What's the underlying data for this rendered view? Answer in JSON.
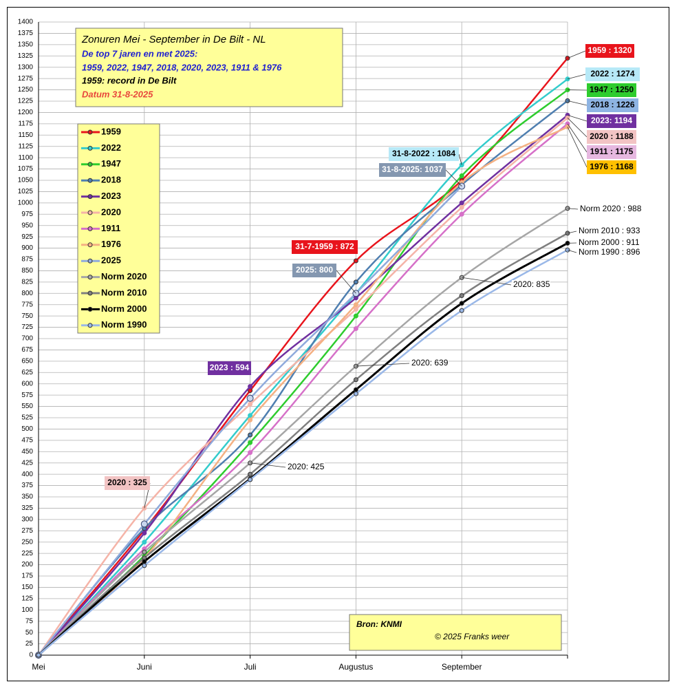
{
  "chart_data": {
    "type": "line",
    "title": "Zonuren Mei - September in De Bilt - NL",
    "subtitle": [
      "De top 7 jaren en met 2025:",
      "1959, 2022, 1947, 2018, 2020, 2023, 1911 & 1976",
      "1959: record in De Bilt",
      "Datum 31-8-2025"
    ],
    "source": [
      "Bron: KNMI",
      "© 2025 Franks weer"
    ],
    "categories": [
      "Mei",
      "Juni",
      "Juli",
      "Augustus",
      "September",
      null
    ],
    "ylim": [
      0,
      1400
    ],
    "yticks": [
      0,
      25,
      50,
      75,
      100,
      125,
      150,
      175,
      200,
      225,
      250,
      275,
      300,
      325,
      350,
      375,
      400,
      425,
      450,
      475,
      500,
      525,
      550,
      575,
      600,
      625,
      650,
      675,
      700,
      725,
      750,
      775,
      800,
      825,
      850,
      875,
      900,
      925,
      950,
      975,
      1000,
      1025,
      1050,
      1075,
      1100,
      1125,
      1150,
      1175,
      1200,
      1225,
      1250,
      1275,
      1300,
      1325,
      1350,
      1375,
      1400
    ],
    "grid": true,
    "series": [
      {
        "name": "1959",
        "color": "#e8141c",
        "values": [
          0,
          277,
          585,
          872,
          1050,
          1320
        ]
      },
      {
        "name": "2022",
        "color": "#33cccc",
        "values": [
          0,
          250,
          530,
          800,
          1084,
          1274
        ]
      },
      {
        "name": "1947",
        "color": "#2ecc2e",
        "values": [
          0,
          220,
          470,
          750,
          1060,
          1250
        ]
      },
      {
        "name": "2018",
        "color": "#4f7fb0",
        "values": [
          0,
          280,
          487,
          825,
          1040,
          1226
        ]
      },
      {
        "name": "2023",
        "color": "#7030a0",
        "values": [
          0,
          270,
          594,
          790,
          1000,
          1194
        ]
      },
      {
        "name": "2020",
        "color": "#f5b4a8",
        "values": [
          0,
          325,
          555,
          765,
          990,
          1188
        ]
      },
      {
        "name": "1911",
        "color": "#d670c8",
        "values": [
          0,
          235,
          448,
          722,
          975,
          1175
        ]
      },
      {
        "name": "1976",
        "color": "#f4b183",
        "values": [
          0,
          215,
          520,
          775,
          1045,
          1168
        ]
      },
      {
        "name": "2025",
        "color": "#8faadc",
        "values": [
          0,
          290,
          568,
          800,
          1037,
          null
        ]
      },
      {
        "name": "Norm 2020",
        "color": "#a6a6a6",
        "values": [
          0,
          228,
          425,
          639,
          835,
          988
        ]
      },
      {
        "name": "Norm 2010",
        "color": "#7f7f7f",
        "values": [
          0,
          215,
          400,
          609,
          795,
          933
        ]
      },
      {
        "name": "Norm 2000",
        "color": "#000000",
        "values": [
          0,
          207,
          390,
          587,
          778,
          911
        ]
      },
      {
        "name": "Norm 1990",
        "color": "#9ab8e8",
        "values": [
          0,
          198,
          388,
          578,
          762,
          896
        ]
      }
    ],
    "annotations": [
      "1959 : 1320",
      "2022 : 1274",
      "1947 : 1250",
      "2018 : 1226",
      "2023: 1194",
      "2020 : 1188",
      "1911 : 1175",
      "1976 : 1168",
      "31-8-2022 : 1084",
      "31-8-2025: 1037",
      "31-7-1959 : 872",
      "2025: 800",
      "2023 : 594",
      "2020 : 325",
      "Norm 2020 : 988",
      "Norm 2010 : 933",
      "Norm 2000 : 911",
      "Norm 1990 : 896",
      "2020: 835",
      "2020: 639",
      "2020: 425"
    ]
  }
}
